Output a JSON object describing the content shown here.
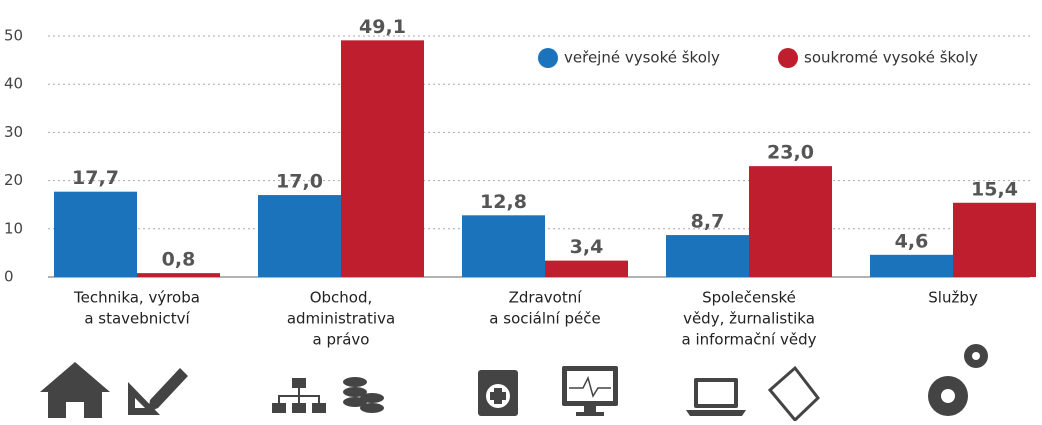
{
  "chart_data": {
    "type": "bar",
    "categories": [
      [
        "Technika, výroba",
        "a stavebnictví"
      ],
      [
        "Obchod,",
        "administrativa",
        "a právo"
      ],
      [
        "Zdravotní",
        "a sociální péče"
      ],
      [
        "Společenské",
        "vědy, žurnalistika",
        "a informační vědy"
      ],
      [
        "Služby"
      ]
    ],
    "series": [
      {
        "name": "veřejné vysoké školy",
        "color": "#1a73bb",
        "values": [
          17.7,
          17.0,
          12.8,
          8.7,
          4.6
        ],
        "value_labels": [
          "17,7",
          "17,0",
          "12,8",
          "8,7",
          "4,6"
        ]
      },
      {
        "name": "soukromé vysoké školy",
        "color": "#be1e2d",
        "values": [
          0.8,
          49.1,
          3.4,
          23.0,
          15.4
        ],
        "value_labels": [
          "0,8",
          "49,1",
          "3,4",
          "23,0",
          "15,4"
        ]
      }
    ],
    "ylim": [
      0,
      50
    ],
    "yticks": [
      0,
      10,
      20,
      30,
      40,
      50
    ],
    "grid": true,
    "legend": "top-right"
  }
}
